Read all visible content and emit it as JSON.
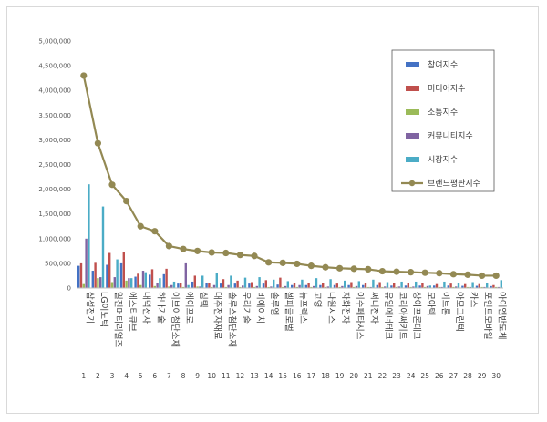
{
  "chart_data": {
    "type": "bar",
    "title": "",
    "xlabel": "",
    "ylabel": "",
    "ylim": [
      0,
      5000000
    ],
    "yticks": [
      "0",
      "500,000",
      "1,000,000",
      "1,500,000",
      "2,000,000",
      "2,500,000",
      "3,000,000",
      "3,500,000",
      "4,000,000",
      "4,500,000",
      "5,000,000"
    ],
    "categories": [
      "삼성전기",
      "LG이노텍",
      "일진머티리얼즈",
      "에스티큐브",
      "대덕전자",
      "하나기술",
      "이브이첨단소재",
      "에이프로",
      "심텍",
      "대주전자재료",
      "솔루스첨단소재",
      "우리기술",
      "비에이치",
      "솔루엠",
      "셀피글로벌",
      "뉴프렉스",
      "고영",
      "다원시스",
      "자화전자",
      "이수페타시스",
      "써니전자",
      "유일에너테크",
      "코리아써키트",
      "상아프론테크",
      "모아텍",
      "이트론",
      "아모그린텍",
      "카스",
      "포인트모바일",
      "아이엠반도체"
    ],
    "numbers": [
      "1",
      "2",
      "3",
      "4",
      "5",
      "6",
      "7",
      "8",
      "9",
      "10",
      "11",
      "12",
      "13",
      "14",
      "15",
      "16",
      "17",
      "18",
      "19",
      "20",
      "21",
      "22",
      "23",
      "24",
      "25",
      "26",
      "27",
      "28",
      "29",
      "30"
    ],
    "legend_position": "top-right",
    "grid": false,
    "series": [
      {
        "name": "참여지수",
        "type": "bar",
        "color": "#4472c4",
        "values": [
          450000,
          350000,
          470000,
          500000,
          230000,
          270000,
          280000,
          90000,
          130000,
          110000,
          90000,
          90000,
          90000,
          90000,
          70000,
          60000,
          60000,
          60000,
          60000,
          60000,
          60000,
          60000,
          50000,
          50000,
          50000,
          50000,
          50000,
          45000,
          45000,
          40000
        ]
      },
      {
        "name": "미디어지수",
        "type": "bar",
        "color": "#c0504d",
        "values": [
          500000,
          510000,
          710000,
          720000,
          290000,
          380000,
          390000,
          110000,
          250000,
          100000,
          180000,
          150000,
          120000,
          160000,
          210000,
          100000,
          110000,
          100000,
          90000,
          120000,
          110000,
          120000,
          100000,
          100000,
          100000,
          80000,
          90000,
          80000,
          80000,
          60000
        ]
      },
      {
        "name": "소통지수",
        "type": "bar",
        "color": "#9bbb59",
        "values": [
          80000,
          200000,
          120000,
          150000,
          60000,
          40000,
          30000,
          20000,
          30000,
          20000,
          20000,
          20000,
          20000,
          20000,
          20000,
          20000,
          20000,
          20000,
          20000,
          20000,
          20000,
          20000,
          20000,
          20000,
          20000,
          20000,
          20000,
          20000,
          20000,
          20000
        ]
      },
      {
        "name": "커뮤니티지수",
        "type": "bar",
        "color": "#8064a2",
        "values": [
          1000000,
          220000,
          220000,
          200000,
          350000,
          100000,
          60000,
          500000,
          30000,
          60000,
          60000,
          50000,
          40000,
          30000,
          40000,
          60000,
          40000,
          30000,
          40000,
          40000,
          20000,
          30000,
          30000,
          30000,
          40000,
          20000,
          30000,
          20000,
          20000,
          20000
        ]
      },
      {
        "name": "시장지수",
        "type": "bar",
        "color": "#4bacc6",
        "values": [
          2100000,
          1650000,
          580000,
          200000,
          320000,
          200000,
          130000,
          60000,
          250000,
          300000,
          250000,
          210000,
          220000,
          170000,
          140000,
          170000,
          200000,
          180000,
          150000,
          140000,
          170000,
          120000,
          130000,
          130000,
          50000,
          130000,
          100000,
          120000,
          100000,
          160000
        ]
      },
      {
        "name": "브랜드평판지수",
        "type": "line",
        "color": "#938953",
        "values": [
          4300000,
          2930000,
          2090000,
          1760000,
          1250000,
          1150000,
          850000,
          790000,
          750000,
          720000,
          710000,
          670000,
          650000,
          520000,
          510000,
          490000,
          450000,
          420000,
          400000,
          390000,
          380000,
          340000,
          330000,
          320000,
          310000,
          300000,
          280000,
          270000,
          250000,
          250000
        ]
      }
    ]
  }
}
